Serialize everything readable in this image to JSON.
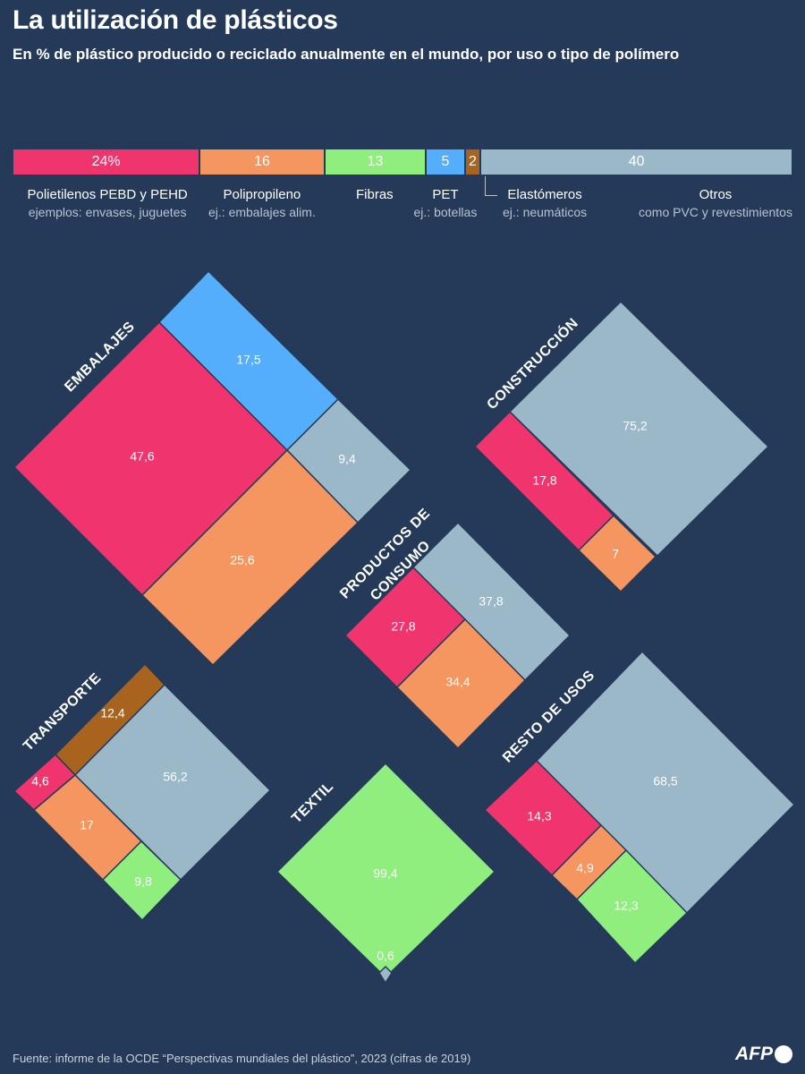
{
  "header": {
    "title": "La utilización de plásticos",
    "subtitle": "En % de plástico producido o reciclado anualmente en el mundo, por uso o tipo de polímero"
  },
  "colors": {
    "background": "#253a58",
    "polietilenos": "#f0346e",
    "polipropileno": "#f5955f",
    "fibras": "#90ee7e",
    "pet": "#55aefc",
    "elastomeros": "#a8641e",
    "otros": "#9bb8c8"
  },
  "legend": [
    {
      "key": "polietilenos",
      "value_label": "24%",
      "name": "Polietilenos PEBD y PEHD",
      "desc": "ejemplos: envases, juguetes"
    },
    {
      "key": "polipropileno",
      "value_label": "16",
      "name": "Polipropileno",
      "desc": "ej.: embalajes alim."
    },
    {
      "key": "fibras",
      "value_label": "13",
      "name": "Fibras",
      "desc": ""
    },
    {
      "key": "pet",
      "value_label": "5",
      "name": "PET",
      "desc": "ej.: botellas"
    },
    {
      "key": "elastomeros",
      "value_label": "2",
      "name": "Elastómeros",
      "desc": "ej.: neumáticos"
    },
    {
      "key": "otros",
      "value_label": "40",
      "name": "Otros",
      "desc": "como PVC y revestimientos"
    }
  ],
  "chart_data": {
    "type": "treemap",
    "overall_share": {
      "categories": [
        "Polietilenos PEBD y PEHD",
        "Polipropileno",
        "Fibras",
        "PET",
        "Elastómeros",
        "Otros"
      ],
      "values": [
        24,
        16,
        13,
        5,
        2,
        40
      ]
    },
    "uses": [
      {
        "name": "EMBALAJES",
        "cells": [
          {
            "key": "polietilenos",
            "value": 47.6,
            "label": "47,6"
          },
          {
            "key": "pet",
            "value": 17.5,
            "label": "17,5"
          },
          {
            "key": "otros",
            "value": 9.4,
            "label": "9,4"
          },
          {
            "key": "polipropileno",
            "value": 25.6,
            "label": "25,6"
          }
        ]
      },
      {
        "name": "CONSTRUCCIÓN",
        "cells": [
          {
            "key": "otros",
            "value": 75.2,
            "label": "75,2"
          },
          {
            "key": "polietilenos",
            "value": 17.8,
            "label": "17,8"
          },
          {
            "key": "polipropileno",
            "value": 7,
            "label": "7"
          }
        ]
      },
      {
        "name": "PRODUCTOS DE CONSUMO",
        "name_lines": [
          "PRODUCTOS DE",
          "CONSUMO"
        ],
        "cells": [
          {
            "key": "otros",
            "value": 37.8,
            "label": "37,8"
          },
          {
            "key": "polietilenos",
            "value": 27.8,
            "label": "27,8"
          },
          {
            "key": "polipropileno",
            "value": 34.4,
            "label": "34,4"
          }
        ]
      },
      {
        "name": "TRANSPORTE",
        "cells": [
          {
            "key": "elastomeros",
            "value": 12.4,
            "label": "12,4"
          },
          {
            "key": "otros",
            "value": 56.2,
            "label": "56,2"
          },
          {
            "key": "polietilenos",
            "value": 4.6,
            "label": "4,6"
          },
          {
            "key": "polipropileno",
            "value": 17,
            "label": "17"
          },
          {
            "key": "fibras",
            "value": 9.8,
            "label": "9,8"
          }
        ]
      },
      {
        "name": "TEXTIL",
        "cells": [
          {
            "key": "fibras",
            "value": 99.4,
            "label": "99,4"
          },
          {
            "key": "otros",
            "value": 0.6,
            "label": "0,6"
          }
        ]
      },
      {
        "name": "RESTO DE USOS",
        "cells": [
          {
            "key": "otros",
            "value": 68.5,
            "label": "68,5"
          },
          {
            "key": "polietilenos",
            "value": 14.3,
            "label": "14,3"
          },
          {
            "key": "polipropileno",
            "value": 4.9,
            "label": "4,9"
          },
          {
            "key": "fibras",
            "value": 12.3,
            "label": "12,3"
          }
        ]
      }
    ]
  },
  "footer": {
    "source": "Fuente: informe de la OCDE “Perspectivas mundiales del plástico”, 2023 (cifras de 2019)",
    "logo": "AFP"
  }
}
